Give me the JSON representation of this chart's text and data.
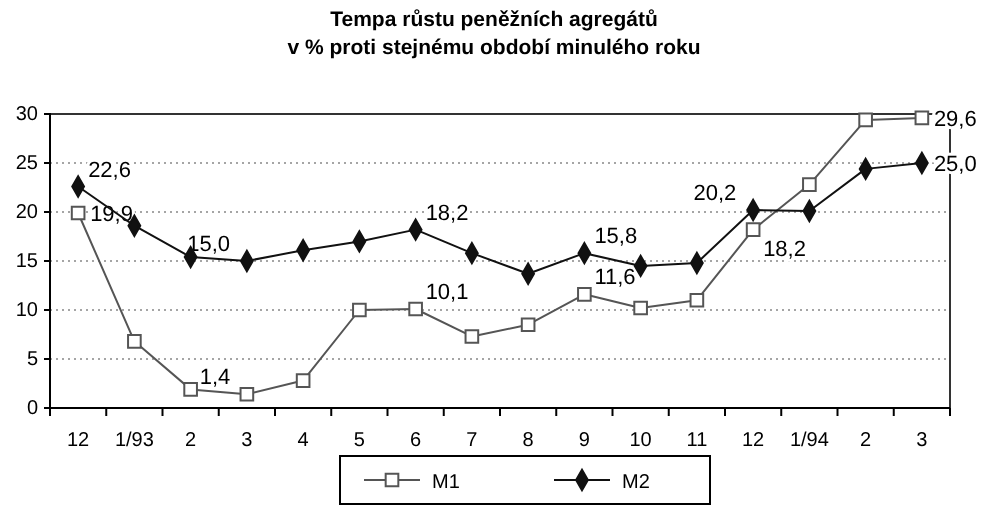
{
  "chart_data": {
    "type": "line",
    "title": "Tempa růstu peněžních agregátů",
    "subtitle": "v % proti stejnému období minulého roku",
    "categories": [
      "12",
      "1/93",
      "2",
      "3",
      "4",
      "5",
      "6",
      "7",
      "8",
      "9",
      "10",
      "11",
      "12",
      "1/94",
      "2",
      "3"
    ],
    "series": [
      {
        "name": "M1",
        "color": "#555555",
        "marker": "square",
        "values": [
          19.9,
          6.8,
          1.9,
          1.4,
          2.8,
          10.0,
          10.1,
          7.3,
          8.5,
          11.6,
          10.2,
          11.0,
          18.2,
          22.8,
          29.4,
          29.6
        ],
        "value_labels": [
          "19,9",
          null,
          null,
          "1,4",
          null,
          null,
          "10,1",
          null,
          null,
          "11,6",
          null,
          null,
          "18,2",
          null,
          null,
          "29,6"
        ]
      },
      {
        "name": "M2",
        "color": "#111111",
        "marker": "diamond",
        "values": [
          22.6,
          18.6,
          15.4,
          15.0,
          16.1,
          17.0,
          18.2,
          15.8,
          13.7,
          15.8,
          14.5,
          14.8,
          20.2,
          20.1,
          24.4,
          25.0
        ],
        "value_labels": [
          "22,6",
          null,
          null,
          "15,0",
          null,
          null,
          "18,2",
          null,
          null,
          "15,8",
          null,
          null,
          "20,2",
          null,
          null,
          "25,0"
        ]
      }
    ],
    "ylim": [
      0,
      30
    ],
    "yticks": [
      0,
      5,
      10,
      15,
      20,
      25,
      30
    ],
    "grid": "y",
    "legend": "bottom",
    "line_style": "solid"
  }
}
